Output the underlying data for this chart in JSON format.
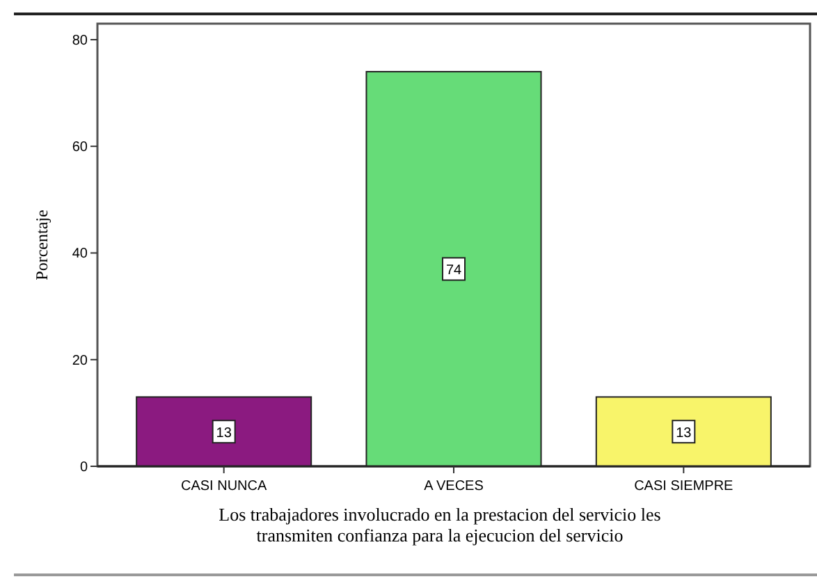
{
  "chart_data": {
    "type": "bar",
    "xlabel": "Los trabajadores involucrado en la prestacion del servicio les transmiten confianza para la ejecucion del servicio",
    "ylabel": "Porcentaje",
    "categories": [
      "CASI NUNCA",
      "A VECES",
      "CASI SIEMPRE"
    ],
    "values": [
      13,
      74,
      13
    ],
    "colors": [
      "#8b1a80",
      "#66dc78",
      "#f8f46a"
    ],
    "ylim": [
      0,
      83
    ],
    "yticks": [
      0,
      20,
      40,
      60,
      80
    ],
    "data_labels": true
  }
}
